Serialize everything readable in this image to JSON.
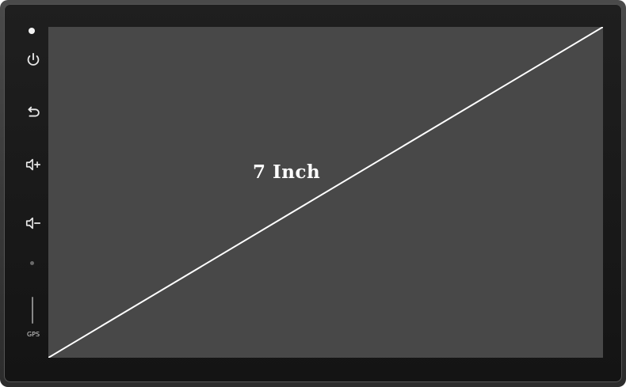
{
  "device": {
    "screen_size_label": "7 Inch",
    "gps_label": "GPS"
  },
  "controls": [
    {
      "name": "power-button",
      "icon": "power-icon"
    },
    {
      "name": "back-button",
      "icon": "back-arrow-icon"
    },
    {
      "name": "volume-up-button",
      "icon": "volume-up-icon"
    },
    {
      "name": "volume-down-button",
      "icon": "volume-down-icon"
    }
  ],
  "colors": {
    "screen": "#484848",
    "bezel": "#1a1a1a",
    "diagonal": "#ffffff"
  }
}
